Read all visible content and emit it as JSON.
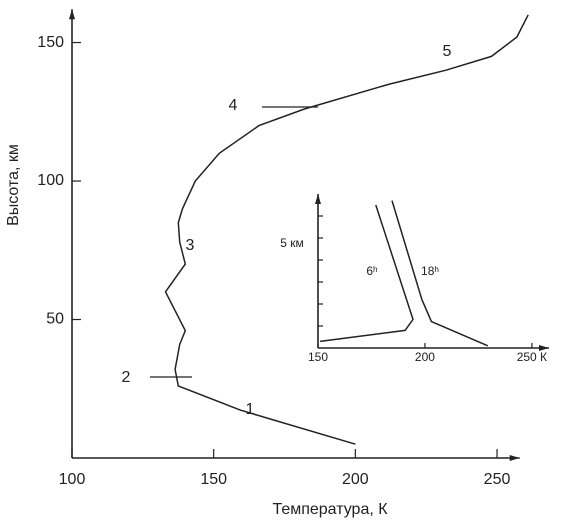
{
  "chart_data": [
    {
      "type": "line",
      "x_label": "Температура, К",
      "y_label": "Высота, км",
      "xlim": [
        100,
        258
      ],
      "ylim": [
        0,
        162
      ],
      "xticks": [
        100,
        150,
        200,
        250
      ],
      "yticks": [
        50,
        100,
        150
      ],
      "x": [
        200,
        159.4,
        137.5,
        136.4,
        138,
        140,
        133,
        140,
        138,
        137.5,
        139,
        143.5,
        152,
        166,
        182,
        212,
        232,
        248,
        257,
        261
      ],
      "values": [
        5,
        17.3,
        26,
        32,
        41,
        46,
        60,
        70,
        78,
        85,
        90,
        100,
        110,
        120,
        126,
        135,
        140,
        145,
        152,
        160
      ],
      "color": "#222222",
      "annotations": [
        "1",
        "2",
        "3",
        "4",
        "5"
      ]
    },
    {
      "type": "line",
      "y_label": "5 км",
      "xlim": [
        150,
        258
      ],
      "ylim": [
        0,
        7
      ],
      "xticks": [
        150,
        200,
        {
          "value": 250,
          "label": "250 К"
        }
      ],
      "yticks": [
        1,
        2,
        3,
        4,
        5,
        6
      ],
      "series": [
        {
          "name": "6ʰ",
          "color": "#222222",
          "x": [
            151,
            190.7,
            194.4,
            177
          ],
          "values": [
            0.3,
            0.8,
            1.3,
            6.5
          ]
        },
        {
          "name": "18ʰ",
          "color": "#222222",
          "x": [
            229.4,
            203,
            198.6,
            184.6
          ],
          "values": [
            0.1,
            1.2,
            2.2,
            6.7
          ]
        }
      ]
    }
  ]
}
